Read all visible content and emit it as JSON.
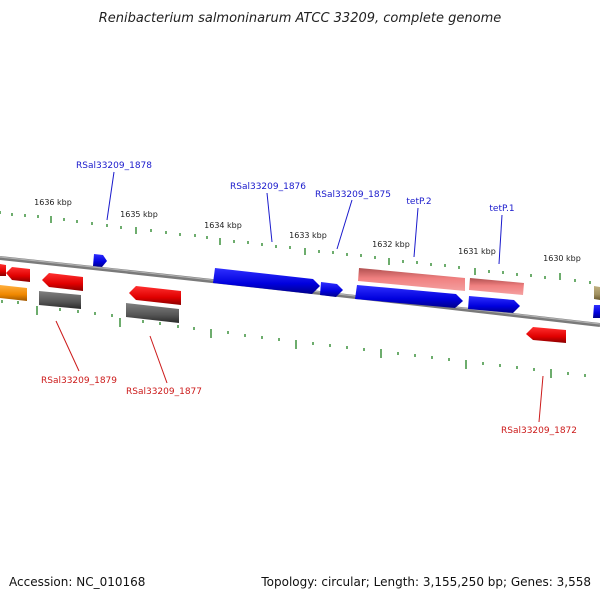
{
  "title": "Renibacterium salmoninarum ATCC 33209, complete genome",
  "footer": {
    "accession": "Accession: NC_010168",
    "summary": "Topology: circular; Length: 3,155,250 bp; Genes: 3,558"
  },
  "colors": {
    "backbone": "#8a8a8a",
    "tick": "#2f8a2f",
    "blue": "#1010e0",
    "red": "#e01010",
    "pink": "#f08080",
    "grey": "#606060",
    "orange": "#f09010",
    "olive": "#a09060",
    "forward_label": "#1a1acc",
    "reverse_label": "#cc1a1a"
  },
  "ticks": [
    {
      "label": "1636 kbp"
    },
    {
      "label": "1635 kbp"
    },
    {
      "label": "1634 kbp"
    },
    {
      "label": "1633 kbp"
    },
    {
      "label": "1632 kbp"
    },
    {
      "label": "1631 kbp"
    },
    {
      "label": "1630 kbp"
    }
  ],
  "gene_labels": {
    "forward": [
      "RSal33209_1878",
      "RSal33209_1876",
      "RSal33209_1875",
      "tetP.2",
      "tetP.1"
    ],
    "reverse": [
      "RSal33209_1879",
      "RSal33209_1877",
      "RSal33209_1872"
    ]
  },
  "features": [
    {
      "id": "f1",
      "strand": "forward",
      "color": "blue"
    },
    {
      "id": "f2",
      "strand": "forward",
      "color": "blue"
    },
    {
      "id": "f3",
      "strand": "forward",
      "color": "blue"
    },
    {
      "id": "f4",
      "strand": "forward",
      "color": "pink"
    },
    {
      "id": "f5",
      "strand": "forward",
      "color": "pink"
    },
    {
      "id": "f6",
      "strand": "forward",
      "color": "blue"
    },
    {
      "id": "f7",
      "strand": "forward",
      "color": "blue"
    },
    {
      "id": "f8",
      "strand": "forward",
      "color": "blue"
    },
    {
      "id": "f9",
      "strand": "forward",
      "color": "red"
    },
    {
      "id": "r1",
      "strand": "reverse",
      "color": "red"
    },
    {
      "id": "r2",
      "strand": "reverse",
      "color": "orange"
    },
    {
      "id": "r3",
      "strand": "reverse",
      "color": "red"
    },
    {
      "id": "r4",
      "strand": "reverse",
      "color": "grey"
    },
    {
      "id": "r5",
      "strand": "reverse",
      "color": "red"
    },
    {
      "id": "r6",
      "strand": "reverse",
      "color": "grey"
    },
    {
      "id": "r7",
      "strand": "reverse",
      "color": "red"
    },
    {
      "id": "r8",
      "strand": "reverse",
      "color": "olive"
    }
  ]
}
